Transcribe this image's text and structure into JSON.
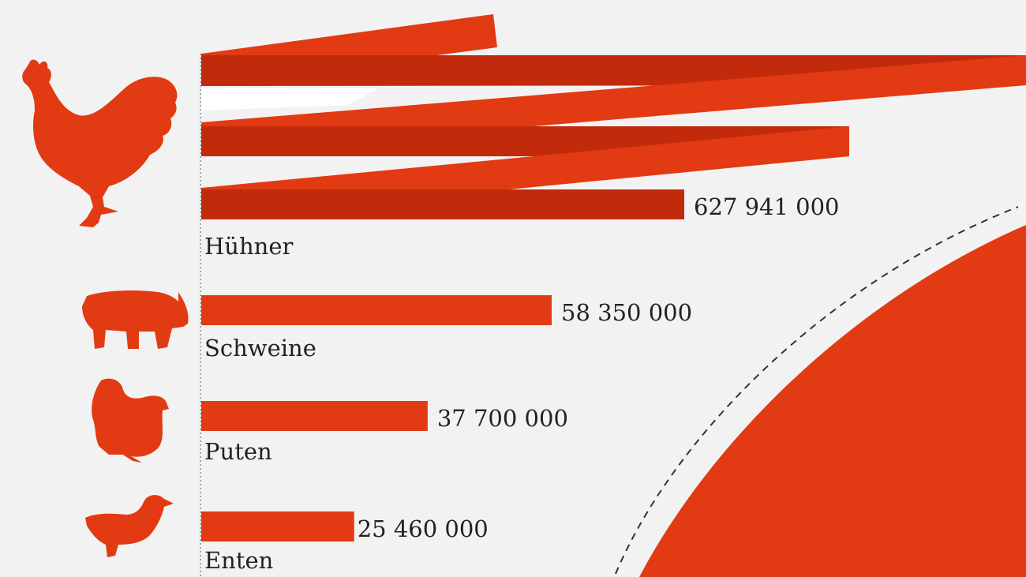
{
  "colors": {
    "background": "#f2f2f2",
    "bar": "#e23a12",
    "bar_dark": "#c22a0c",
    "text": "#222222"
  },
  "icons": [
    "rooster-icon",
    "pig-icon",
    "turkey-icon",
    "duck-icon"
  ],
  "chart_data": {
    "type": "bar",
    "orientation": "horizontal",
    "categories": [
      "Hühner",
      "Schweine",
      "Puten",
      "Enten"
    ],
    "values": [
      627941000,
      58350000,
      37700000,
      25460000
    ],
    "value_labels": [
      "627 941 000",
      "58 350 000",
      "37 700 000",
      "25 460 000"
    ],
    "note": "first bar zig-zags (folded) to indicate a very long value; large red disc in the corner represents the chicken total",
    "grid": false
  }
}
